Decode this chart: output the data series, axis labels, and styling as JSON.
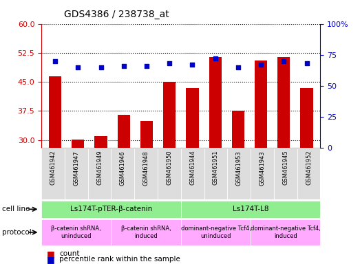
{
  "title": "GDS4386 / 238738_at",
  "samples": [
    "GSM461942",
    "GSM461947",
    "GSM461949",
    "GSM461946",
    "GSM461948",
    "GSM461950",
    "GSM461944",
    "GSM461951",
    "GSM461953",
    "GSM461943",
    "GSM461945",
    "GSM461952"
  ],
  "counts": [
    46.5,
    30.2,
    31.0,
    36.5,
    35.0,
    45.0,
    43.5,
    51.5,
    37.5,
    50.5,
    51.5,
    43.5
  ],
  "percentiles": [
    70,
    65,
    65,
    66,
    66,
    68,
    67,
    72,
    65,
    67,
    70,
    68
  ],
  "ylim_left": [
    28,
    60
  ],
  "ylim_right": [
    0,
    100
  ],
  "yticks_left": [
    30,
    37.5,
    45,
    52.5,
    60
  ],
  "yticks_right": [
    0,
    25,
    50,
    75,
    100
  ],
  "bar_color": "#cc0000",
  "dot_color": "#0000cc",
  "cell_line_groups": [
    {
      "label": "Ls174T-pTER-β-catenin",
      "start": 0,
      "end": 6,
      "color": "#90ee90"
    },
    {
      "label": "Ls174T-L8",
      "start": 6,
      "end": 12,
      "color": "#90ee90"
    }
  ],
  "protocol_groups": [
    {
      "label": "β-catenin shRNA,\nuninduced",
      "start": 0,
      "end": 3,
      "color": "#ffaaff"
    },
    {
      "label": "β-catenin shRNA,\ninduced",
      "start": 3,
      "end": 6,
      "color": "#ffaaff"
    },
    {
      "label": "dominant-negative Tcf4,\nuninduced",
      "start": 6,
      "end": 9,
      "color": "#ffaaff"
    },
    {
      "label": "dominant-negative Tcf4,\ninduced",
      "start": 9,
      "end": 12,
      "color": "#ffaaff"
    }
  ],
  "legend_count_label": "count",
  "legend_pct_label": "percentile rank within the sample",
  "cell_line_label": "cell line",
  "protocol_label": "protocol",
  "left_axis_color": "#cc0000",
  "right_axis_color": "#0000cc",
  "xticklabel_bg": "#dddddd"
}
